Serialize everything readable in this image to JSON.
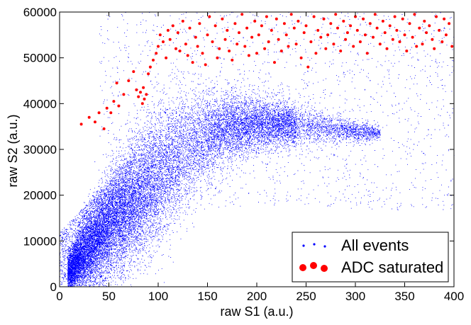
{
  "chart_data": {
    "type": "scatter",
    "xlabel": "raw S1 (a.u.)",
    "ylabel": "raw S2 (a.u.)",
    "xlim": [
      0,
      400
    ],
    "ylim": [
      0,
      60000
    ],
    "xticks": [
      0,
      50,
      100,
      150,
      200,
      250,
      300,
      350,
      400
    ],
    "yticks": [
      0,
      10000,
      20000,
      30000,
      40000,
      50000,
      60000
    ],
    "grid": false,
    "legend_placement": "bottom-right",
    "series": [
      {
        "name": "All events",
        "color": "#0000ff",
        "marker": "small dot",
        "density_profile": [
          {
            "x": 5,
            "y_mean": 2000,
            "y_spread": 1500
          },
          {
            "x": 25,
            "y_mean": 7000,
            "y_spread": 4000
          },
          {
            "x": 50,
            "y_mean": 13000,
            "y_spread": 5500
          },
          {
            "x": 75,
            "y_mean": 19000,
            "y_spread": 6500
          },
          {
            "x": 100,
            "y_mean": 24000,
            "y_spread": 7000
          },
          {
            "x": 125,
            "y_mean": 29000,
            "y_spread": 6500
          },
          {
            "x": 150,
            "y_mean": 33500,
            "y_spread": 5000
          },
          {
            "x": 175,
            "y_mean": 35000,
            "y_spread": 3500
          },
          {
            "x": 200,
            "y_mean": 35500,
            "y_spread": 3000
          },
          {
            "x": 225,
            "y_mean": 35500,
            "y_spread": 2500
          },
          {
            "x": 250,
            "y_mean": 35000,
            "y_spread": 2000
          },
          {
            "x": 275,
            "y_mean": 34500,
            "y_spread": 1500
          },
          {
            "x": 300,
            "y_mean": 34000,
            "y_spread": 1000
          },
          {
            "x": 325,
            "y_mean": 33500,
            "y_spread": 800
          }
        ]
      },
      {
        "name": "ADC saturated",
        "color": "#ff0000",
        "marker": "large dot",
        "points": [
          [
            22,
            35500
          ],
          [
            30,
            37000
          ],
          [
            36,
            36000
          ],
          [
            40,
            38000
          ],
          [
            45,
            34500
          ],
          [
            48,
            39000
          ],
          [
            52,
            38000
          ],
          [
            55,
            40500
          ],
          [
            60,
            39500
          ],
          [
            58,
            44500
          ],
          [
            65,
            42000
          ],
          [
            70,
            45000
          ],
          [
            75,
            47000
          ],
          [
            78,
            43000
          ],
          [
            80,
            41500
          ],
          [
            82,
            42500
          ],
          [
            84,
            40000
          ],
          [
            85,
            43500
          ],
          [
            86,
            41000
          ],
          [
            88,
            42000
          ],
          [
            90,
            46500
          ],
          [
            92,
            48000
          ],
          [
            95,
            49500
          ],
          [
            98,
            51000
          ],
          [
            100,
            52500
          ],
          [
            102,
            55000
          ],
          [
            105,
            53500
          ],
          [
            108,
            50000
          ],
          [
            110,
            56000
          ],
          [
            112,
            54000
          ],
          [
            115,
            57000
          ],
          [
            118,
            52000
          ],
          [
            120,
            55500
          ],
          [
            122,
            51500
          ],
          [
            125,
            58000
          ],
          [
            128,
            53000
          ],
          [
            130,
            50500
          ],
          [
            132,
            56500
          ],
          [
            135,
            49000
          ],
          [
            138,
            54500
          ],
          [
            140,
            52500
          ],
          [
            142,
            57500
          ],
          [
            145,
            51000
          ],
          [
            148,
            48500
          ],
          [
            150,
            55000
          ],
          [
            152,
            59000
          ],
          [
            155,
            53500
          ],
          [
            158,
            57000
          ],
          [
            160,
            50000
          ],
          [
            162,
            52000
          ],
          [
            165,
            58500
          ],
          [
            168,
            54000
          ],
          [
            170,
            56000
          ],
          [
            172,
            51500
          ],
          [
            175,
            49500
          ],
          [
            178,
            57500
          ],
          [
            180,
            53000
          ],
          [
            182,
            55500
          ],
          [
            185,
            59500
          ],
          [
            188,
            52500
          ],
          [
            190,
            56500
          ],
          [
            192,
            50500
          ],
          [
            195,
            54500
          ],
          [
            198,
            58000
          ],
          [
            200,
            51000
          ],
          [
            202,
            55000
          ],
          [
            205,
            57000
          ],
          [
            208,
            52000
          ],
          [
            210,
            59000
          ],
          [
            212,
            53500
          ],
          [
            215,
            56000
          ],
          [
            218,
            49000
          ],
          [
            220,
            58500
          ],
          [
            222,
            54000
          ],
          [
            225,
            51500
          ],
          [
            228,
            57500
          ],
          [
            230,
            55000
          ],
          [
            232,
            52500
          ],
          [
            235,
            59500
          ],
          [
            238,
            56500
          ],
          [
            240,
            53000
          ],
          [
            242,
            58000
          ],
          [
            245,
            50000
          ],
          [
            248,
            55500
          ],
          [
            250,
            57000
          ],
          [
            252,
            48000
          ],
          [
            255,
            53500
          ],
          [
            258,
            59000
          ],
          [
            260,
            51000
          ],
          [
            262,
            56000
          ],
          [
            265,
            54500
          ],
          [
            268,
            58500
          ],
          [
            270,
            52000
          ],
          [
            272,
            55000
          ],
          [
            275,
            57500
          ],
          [
            278,
            53000
          ],
          [
            280,
            59500
          ],
          [
            282,
            56500
          ],
          [
            285,
            51500
          ],
          [
            288,
            58000
          ],
          [
            290,
            54000
          ],
          [
            292,
            55500
          ],
          [
            295,
            57000
          ],
          [
            298,
            52500
          ],
          [
            300,
            59000
          ],
          [
            302,
            56000
          ],
          [
            305,
            53500
          ],
          [
            308,
            58500
          ],
          [
            310,
            55000
          ],
          [
            312,
            51000
          ],
          [
            315,
            57500
          ],
          [
            318,
            54500
          ],
          [
            320,
            59500
          ],
          [
            322,
            56500
          ],
          [
            325,
            53000
          ],
          [
            328,
            58000
          ],
          [
            330,
            55500
          ],
          [
            332,
            52000
          ],
          [
            335,
            57000
          ],
          [
            338,
            54000
          ],
          [
            340,
            59000
          ],
          [
            342,
            56000
          ],
          [
            345,
            53500
          ],
          [
            348,
            58500
          ],
          [
            350,
            55000
          ],
          [
            352,
            51500
          ],
          [
            355,
            57500
          ],
          [
            358,
            54500
          ],
          [
            360,
            59500
          ],
          [
            362,
            52500
          ],
          [
            365,
            56500
          ],
          [
            368,
            53000
          ],
          [
            370,
            58000
          ],
          [
            372,
            55500
          ],
          [
            375,
            57000
          ],
          [
            378,
            54000
          ],
          [
            380,
            52000
          ],
          [
            382,
            59000
          ],
          [
            385,
            56000
          ],
          [
            388,
            53500
          ],
          [
            390,
            58500
          ],
          [
            392,
            55000
          ],
          [
            395,
            57500
          ],
          [
            398,
            52500
          ]
        ]
      }
    ]
  }
}
